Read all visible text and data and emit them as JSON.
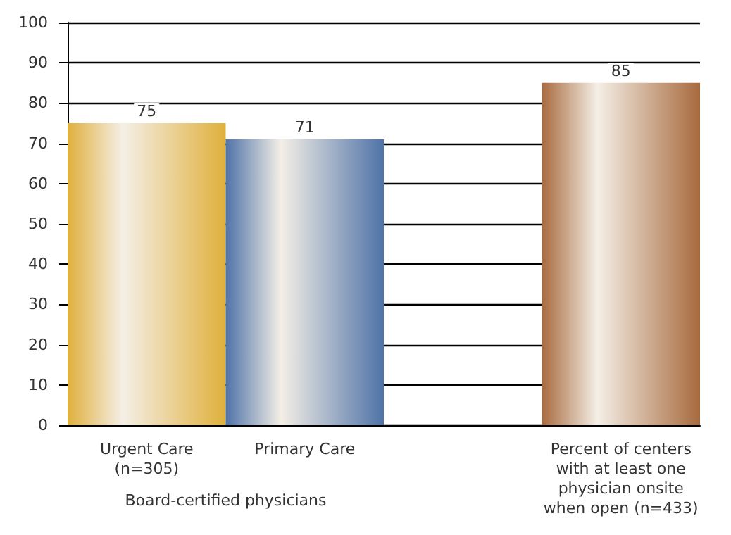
{
  "chart_data": {
    "type": "bar",
    "categories": [
      "Urgent Care\n(n=305)",
      "Primary Care",
      null,
      "Percent of centers\nwith at least one\nphysician onsite\nwhen open (n=433)"
    ],
    "values": [
      75,
      71,
      null,
      85
    ],
    "colors": [
      "#e0b03c",
      "#4f73a8",
      null,
      "#a86a3e"
    ],
    "ylim": [
      0,
      100
    ],
    "yticks": [
      0,
      10,
      20,
      30,
      40,
      50,
      60,
      70,
      80,
      90,
      100
    ],
    "grid": "y",
    "data_labels": true,
    "annotations": [
      "Board-certified physicians"
    ]
  }
}
